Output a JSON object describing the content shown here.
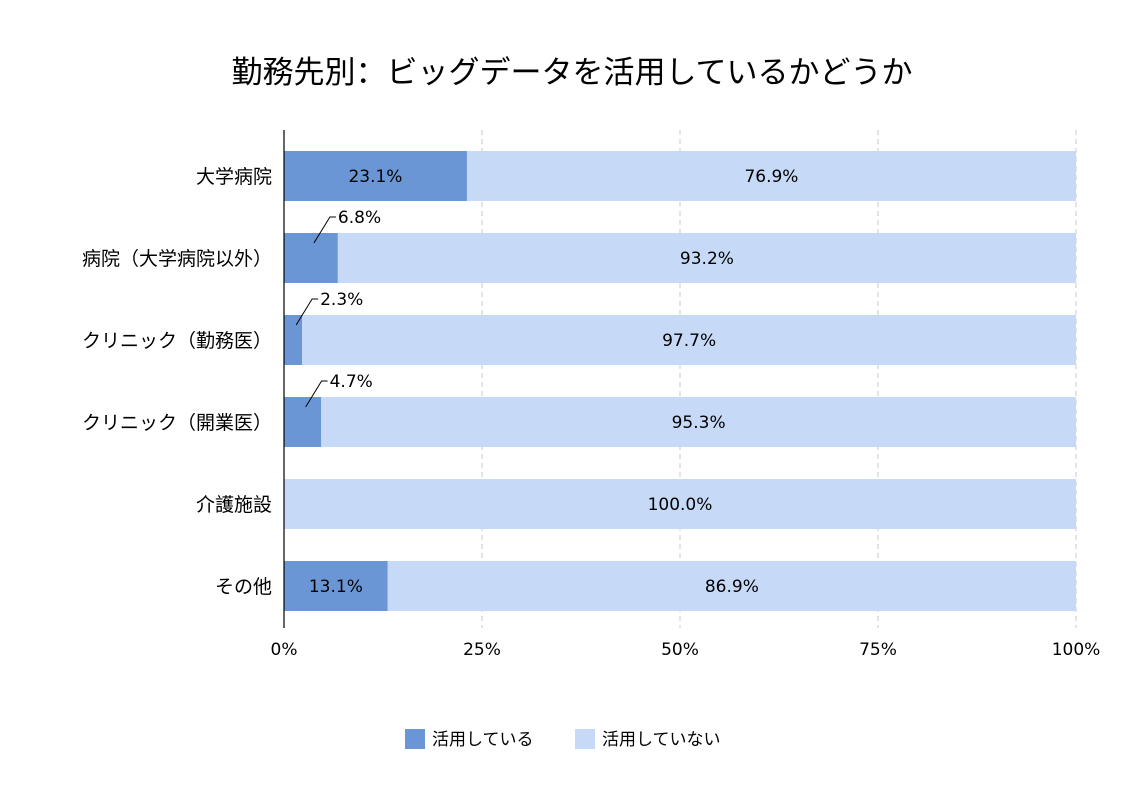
{
  "chart_data": {
    "type": "bar",
    "orientation": "horizontal",
    "stacked": "percent",
    "title": "勤務先別：ビッグデータを活用しているかどうか",
    "categories": [
      "大学病院",
      "病院（大学病院以外）",
      "クリニック（勤務医）",
      "クリニック（開業医）",
      "介護施設",
      "その他"
    ],
    "series": [
      {
        "name": "活用している",
        "values": [
          23.1,
          6.8,
          2.3,
          4.7,
          0.0,
          13.1
        ],
        "labels": [
          "23.1%",
          "6.8%",
          "2.3%",
          "4.7%",
          "",
          "13.1%"
        ],
        "color": "#6a96d6"
      },
      {
        "name": "活用していない",
        "values": [
          76.9,
          93.2,
          97.7,
          95.3,
          100.0,
          86.9
        ],
        "labels": [
          "76.9%",
          "93.2%",
          "97.7%",
          "95.3%",
          "100.0%",
          "86.9%"
        ],
        "color": "#c6d9f6"
      }
    ],
    "xlim": [
      0,
      100
    ],
    "x_ticks": [
      {
        "value": 0,
        "label": "0%"
      },
      {
        "value": 25,
        "label": "25%"
      },
      {
        "value": 50,
        "label": "50%"
      },
      {
        "value": 75,
        "label": "75%"
      },
      {
        "value": 100,
        "label": "100%"
      }
    ],
    "grid": true,
    "legend_position": "bottom"
  }
}
